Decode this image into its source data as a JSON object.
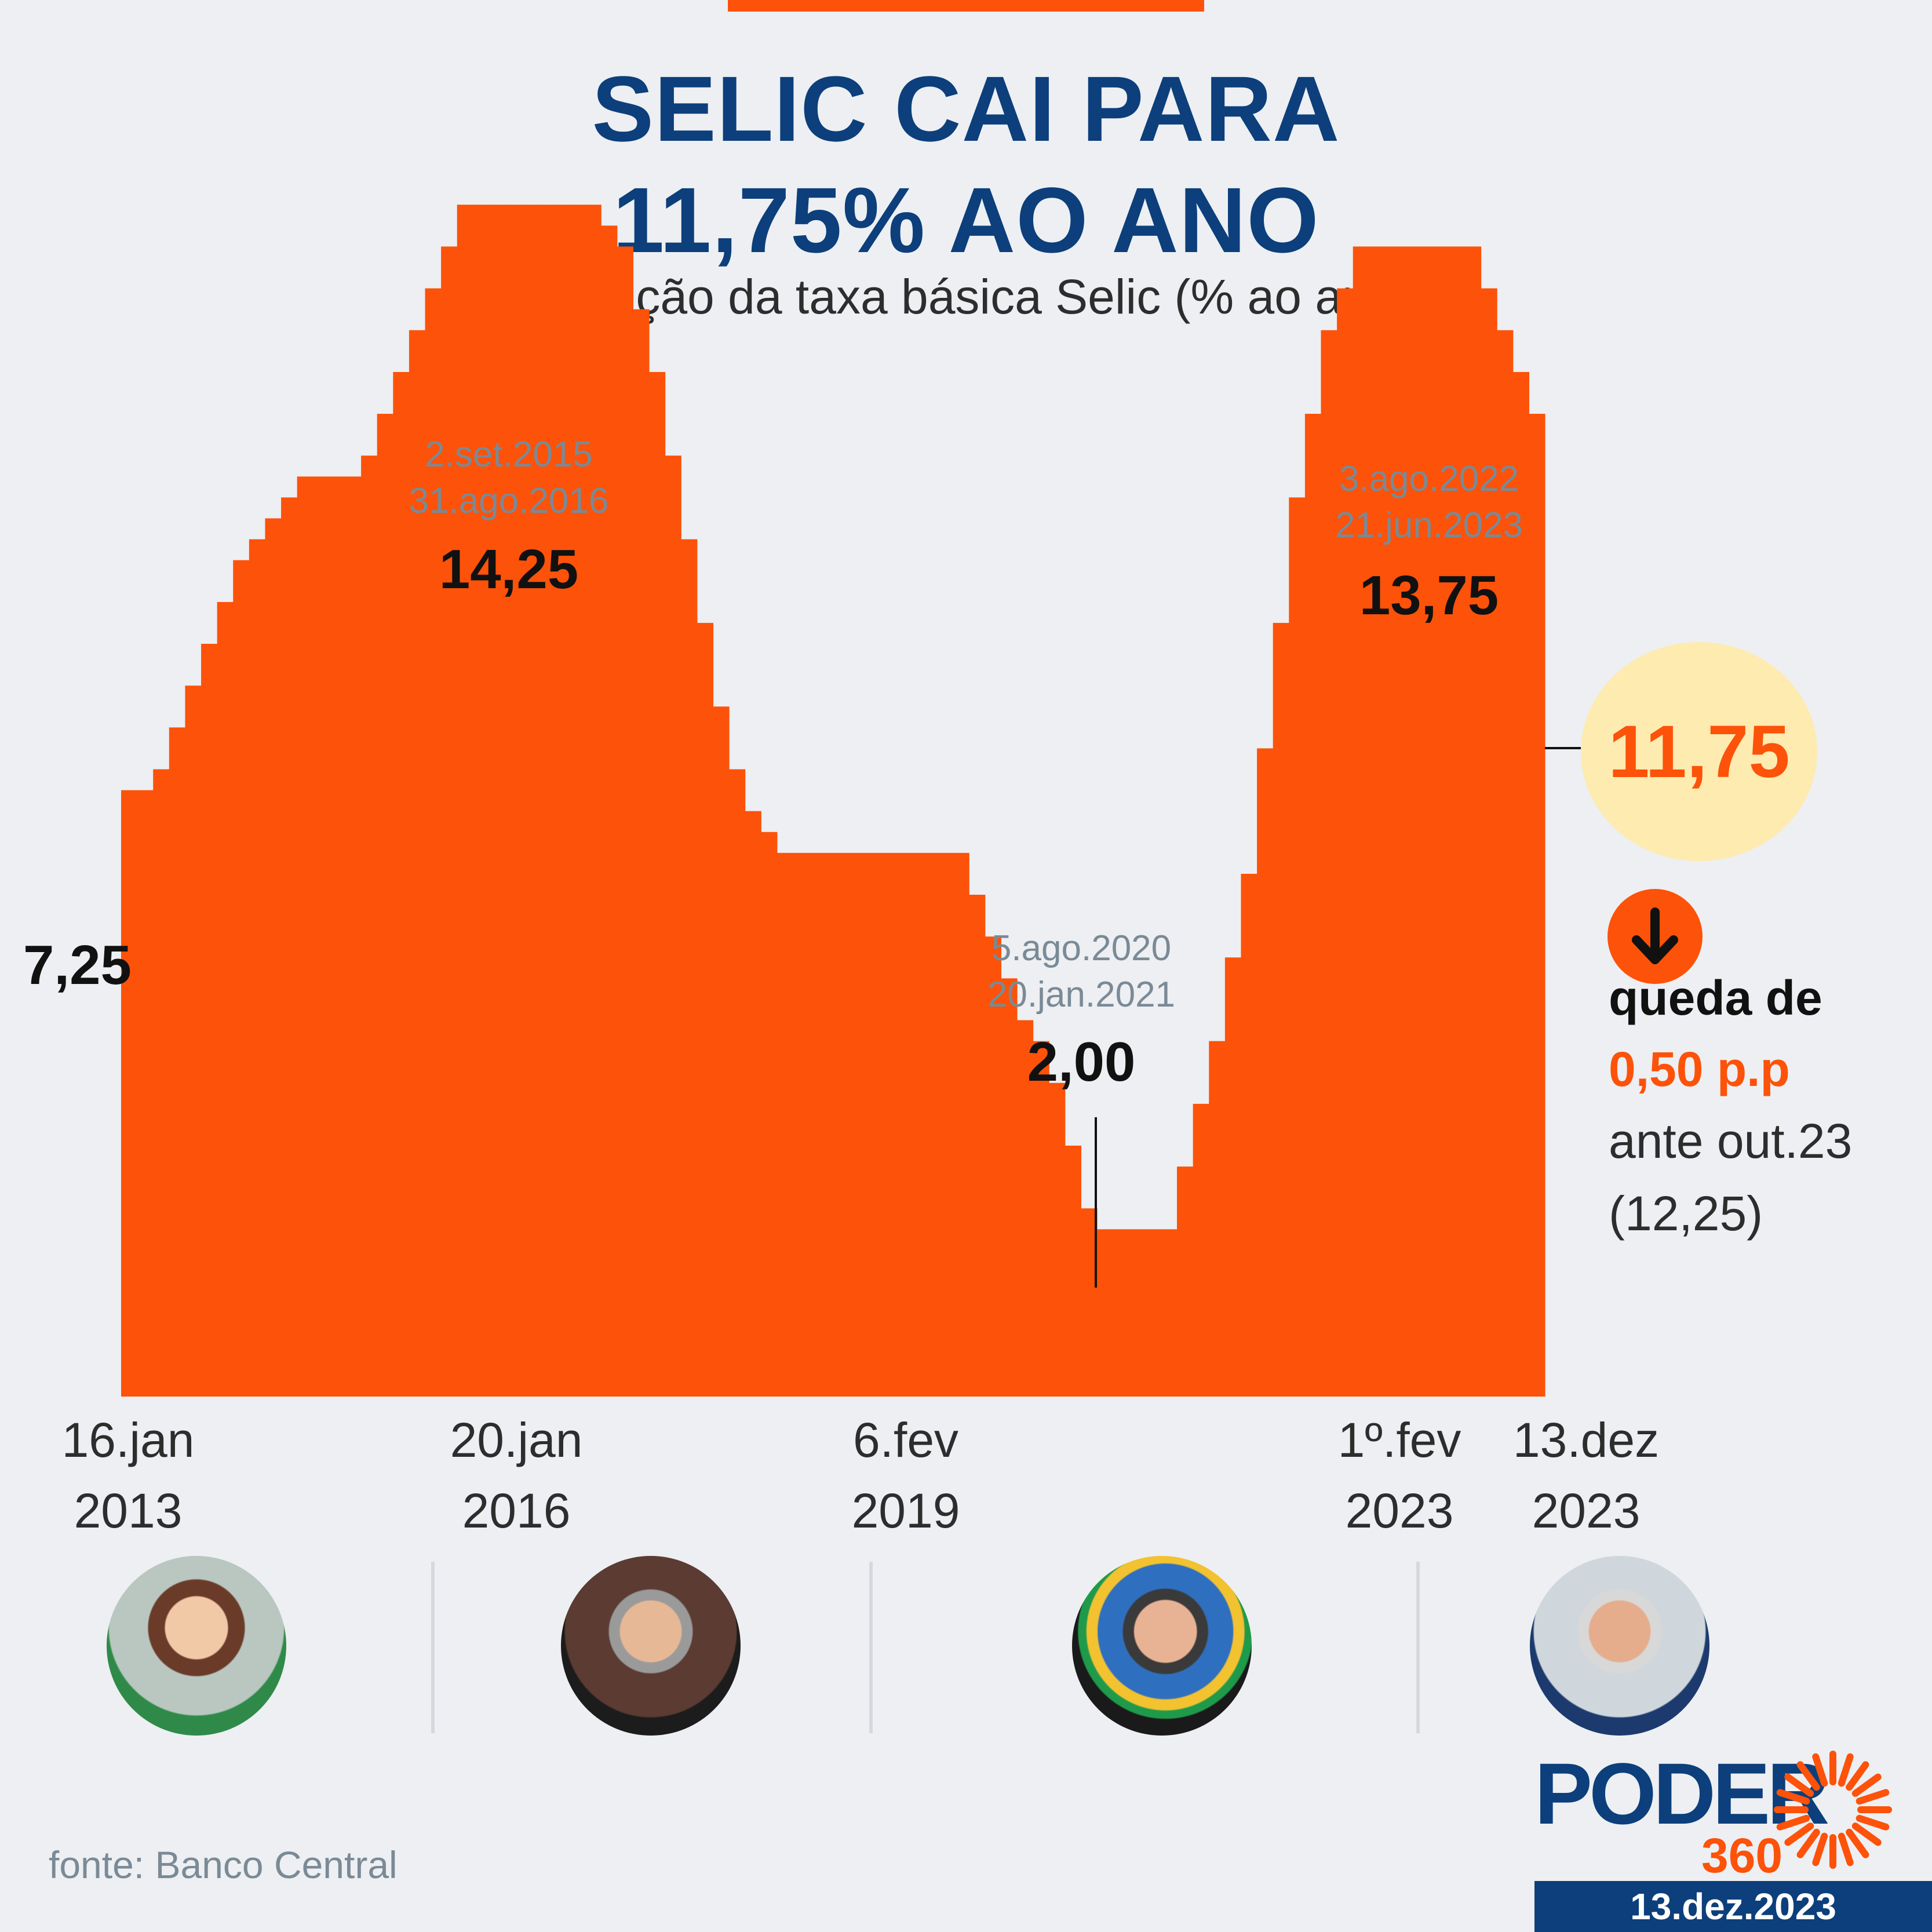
{
  "header": {
    "title_line1": "SELIC CAI PARA",
    "title_line2": "11,75% AO ANO",
    "subtitle": "evolução da taxa básica Selic (% ao ano)"
  },
  "colors": {
    "bar": "#fd5209",
    "title": "#0c3f7b",
    "highlight_bubble": "#fdebb0",
    "background": "#edeff2"
  },
  "chart_data": {
    "type": "bar",
    "step": true,
    "ylim": [
      0,
      15
    ],
    "grid": false,
    "values": [
      7.25,
      7.25,
      7.5,
      8.0,
      8.5,
      9.0,
      9.5,
      10.0,
      10.25,
      10.5,
      10.75,
      11.0,
      11.0,
      11.0,
      11.0,
      11.25,
      11.75,
      12.25,
      12.75,
      13.25,
      13.75,
      14.25,
      14.25,
      14.25,
      14.25,
      14.25,
      14.25,
      14.25,
      14.25,
      14.25,
      14.0,
      13.75,
      13.0,
      12.25,
      11.25,
      10.25,
      9.25,
      8.25,
      7.5,
      7.0,
      6.75,
      6.5,
      6.5,
      6.5,
      6.5,
      6.5,
      6.5,
      6.5,
      6.5,
      6.5,
      6.5,
      6.5,
      6.5,
      6.0,
      5.5,
      5.0,
      4.5,
      4.25,
      3.75,
      3.0,
      2.25,
      2.0,
      2.0,
      2.0,
      2.0,
      2.0,
      2.75,
      3.5,
      4.25,
      5.25,
      6.25,
      7.75,
      9.25,
      10.75,
      11.75,
      12.75,
      13.25,
      13.75,
      13.75,
      13.75,
      13.75,
      13.75,
      13.75,
      13.75,
      13.75,
      13.25,
      12.75,
      12.25,
      11.75
    ],
    "x_ticks": [
      {
        "line1": "16.jan",
        "line2": "2013"
      },
      {
        "line1": "20.jan",
        "line2": "2016"
      },
      {
        "line1": "6.fev",
        "line2": "2019"
      },
      {
        "line1": "1º.fev",
        "line2": "2023"
      },
      {
        "line1": "13.dez",
        "line2": "2023"
      }
    ],
    "annotations": {
      "start": {
        "value": "7,25"
      },
      "peak_2016": {
        "from": "2.set.2015",
        "to": "31.ago.2016",
        "value": "14,25"
      },
      "low_2020": {
        "from": "5.ago.2020",
        "to": "20.jan.2021",
        "value": "2,00"
      },
      "peak_2022": {
        "from": "3.ago.2022",
        "to": "21.jun.2023",
        "value": "13,75"
      },
      "current": {
        "value": "11,75"
      }
    }
  },
  "note": {
    "line1": "queda de",
    "line2": "0,50 p.p",
    "line3": "ante out.23",
    "line4": "(12,25)"
  },
  "footer": {
    "source": "fonte: Banco Central",
    "logo_word": "PODER",
    "logo_number": "360",
    "date": "13.dez.2023"
  }
}
